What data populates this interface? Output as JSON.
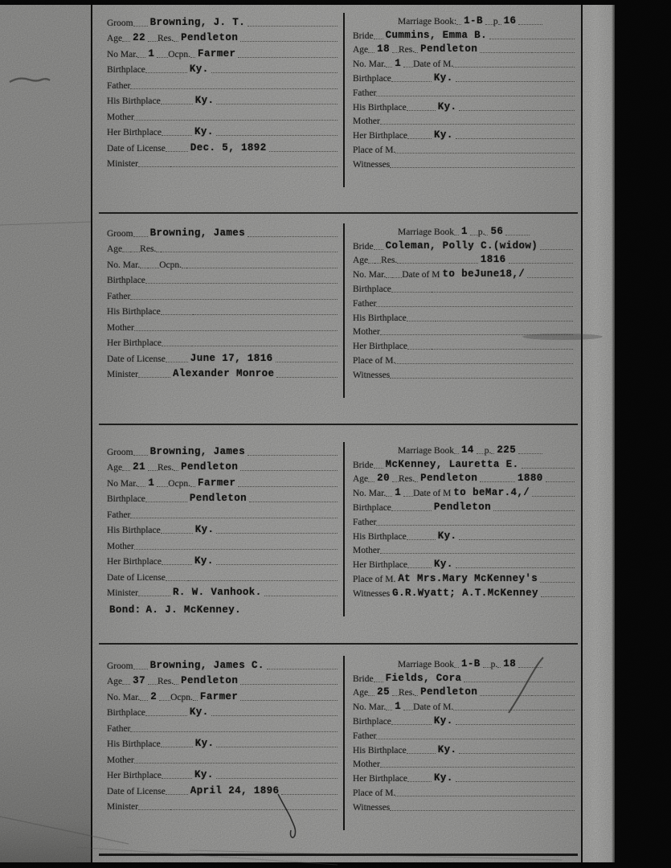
{
  "colors": {
    "background": "#0a0a0a",
    "paper": "#b5b5b3",
    "margin": "#a4a4a2",
    "ink": "#161614"
  },
  "labels": {
    "groom": "Groom",
    "bride": "Bride",
    "age": "Age",
    "res": "Res.",
    "ocpn": "Ocpn.",
    "birthplace": "Birthplace",
    "father": "Father",
    "his_birthplace": "His Birthplace",
    "mother": "Mother",
    "her_birthplace": "Her Birthplace",
    "date_of_license": "Date of License",
    "minister": "Minister",
    "no_mar_bride": "No. Mar.",
    "place_of_m": "Place of M.",
    "witnesses": "Witnesses"
  },
  "records": [
    {
      "groom": {
        "name": "Browning, J. T.",
        "age": "22",
        "res": "Pendleton",
        "no_mar_label": "No Mar.",
        "no_mar": "1",
        "ocpn": "Farmer",
        "birthplace": "Ky.",
        "father": "",
        "his_birthplace": "Ky.",
        "mother": "",
        "her_birthplace": "Ky.",
        "date_of_license": "Dec. 5, 1892",
        "minister": "",
        "bond_label": "",
        "bond": ""
      },
      "bride": {
        "marriage_book_label": "Marriage Book:",
        "book": "1-B",
        "page_label": "p",
        "page": "16",
        "name": "Cummins, Emma B.",
        "age": "18",
        "res": "Pendleton",
        "year_note": "",
        "no_mar": "1",
        "date_of_m_label": "Date of M.",
        "date_of_m": "",
        "birthplace": "Ky.",
        "father": "",
        "his_birthplace": "Ky.",
        "mother": "",
        "her_birthplace": "Ky.",
        "place_of_m": "",
        "witnesses": ""
      }
    },
    {
      "groom": {
        "name": "Browning, James",
        "age": "",
        "res": "",
        "no_mar_label": "No. Mar.",
        "no_mar": "",
        "ocpn": "",
        "birthplace": "",
        "father": "",
        "his_birthplace": "",
        "mother": "",
        "her_birthplace": "",
        "date_of_license": "June 17, 1816",
        "minister": "Alexander Monroe",
        "bond_label": "",
        "bond": ""
      },
      "bride": {
        "marriage_book_label": "Marriage Book",
        "book": "1",
        "page_label": "p.",
        "page": "56",
        "name": "Coleman, Polly C.(widow)",
        "age": "",
        "res": "",
        "year_note": "1816",
        "no_mar": "",
        "date_of_m_label": "Date of M",
        "date_of_m": "to beJune18,/",
        "birthplace": "",
        "father": "",
        "his_birthplace": "",
        "mother": "",
        "her_birthplace": "",
        "place_of_m": "",
        "witnesses": ""
      }
    },
    {
      "groom": {
        "name": "Browning, James",
        "age": "21",
        "res": "Pendleton",
        "no_mar_label": "No Mar.",
        "no_mar": "1",
        "ocpn": "Farmer",
        "birthplace": "Pendleton",
        "father": "",
        "his_birthplace": "Ky.",
        "mother": "",
        "her_birthplace": "Ky.",
        "date_of_license": "",
        "minister": "R. W. Vanhook.",
        "bond_label": "Bond:",
        "bond": "A. J. McKenney."
      },
      "bride": {
        "marriage_book_label": "Marriage Book",
        "book": "14",
        "page_label": "p.",
        "page": "225",
        "name": "McKenney, Lauretta E.",
        "age": "20",
        "res": "Pendleton",
        "year_note": "1880",
        "no_mar": "1",
        "date_of_m_label": "Date of M",
        "date_of_m": "to beMar.4,/",
        "birthplace": "Pendleton",
        "father": "",
        "his_birthplace": "Ky.",
        "mother": "",
        "her_birthplace": "Ky.",
        "place_of_m": "At Mrs.Mary McKenney's",
        "witnesses": "G.R.Wyatt; A.T.McKenney"
      }
    },
    {
      "groom": {
        "name": "Browning, James C.",
        "age": "37",
        "res": "Pendleton",
        "no_mar_label": "No. Mar.",
        "no_mar": "2",
        "ocpn": "Farmer",
        "birthplace": "Ky.",
        "father": "",
        "his_birthplace": "Ky.",
        "mother": "",
        "her_birthplace": "Ky.",
        "date_of_license": "April 24, 1896",
        "minister": "",
        "bond_label": "",
        "bond": ""
      },
      "bride": {
        "marriage_book_label": "Marriage Book",
        "book": "1-B",
        "page_label": "p.",
        "page": "18",
        "name": "Fields, Cora",
        "age": "25",
        "res": "Pendleton",
        "year_note": "",
        "no_mar": "1",
        "date_of_m_label": "Date of M.",
        "date_of_m": "",
        "birthplace": "Ky.",
        "father": "",
        "his_birthplace": "Ky.",
        "mother": "",
        "her_birthplace": "Ky.",
        "place_of_m": "",
        "witnesses": ""
      }
    }
  ]
}
